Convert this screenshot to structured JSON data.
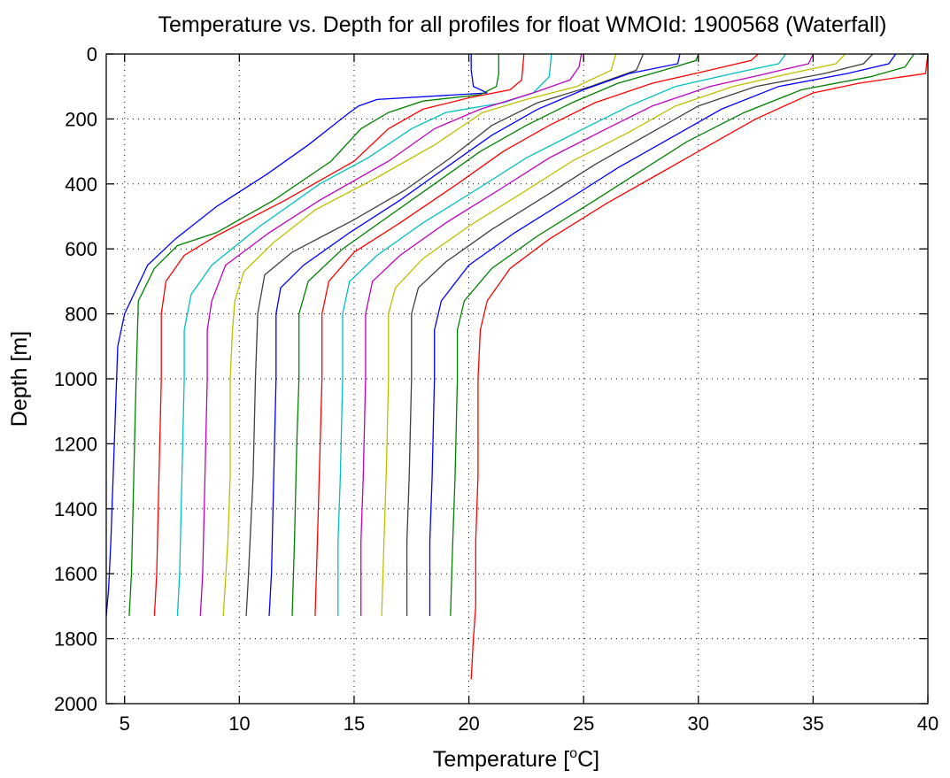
{
  "chart_data": {
    "type": "line",
    "title": "Temperature vs. Depth for all profiles for float WMOId: 1900568 (Waterfall)",
    "xlabel_prefix": "Temperature [",
    "xlabel_sup": "o",
    "xlabel_suffix": "C]",
    "ylabel": "Depth [m]",
    "xlim": [
      4.2,
      40
    ],
    "ylim": [
      2000,
      0
    ],
    "y_reversed": true,
    "x_ticks": [
      5,
      10,
      15,
      20,
      25,
      30,
      35,
      40
    ],
    "y_ticks": [
      0,
      200,
      400,
      600,
      800,
      1000,
      1200,
      1400,
      1600,
      1800,
      2000
    ],
    "grid": true,
    "legend": "none",
    "colors": [
      "#0000ff",
      "#008000",
      "#ff0000",
      "#00bfbf",
      "#bf00bf",
      "#bfbf00",
      "#404040"
    ],
    "series": [
      {
        "color": "#0000ff",
        "points": [
          [
            20.1,
            0
          ],
          [
            20.1,
            50
          ],
          [
            20.2,
            100
          ],
          [
            20.8,
            120
          ],
          [
            16.0,
            140
          ],
          [
            15.2,
            160
          ],
          [
            14.8,
            180
          ],
          [
            13.0,
            280
          ],
          [
            11.2,
            370
          ],
          [
            9.0,
            470
          ],
          [
            7.2,
            570
          ],
          [
            6.0,
            650
          ],
          [
            5.0,
            800
          ],
          [
            4.7,
            900
          ],
          [
            4.6,
            1100
          ],
          [
            4.5,
            1300
          ],
          [
            4.4,
            1500
          ],
          [
            4.3,
            1650
          ],
          [
            4.2,
            1730
          ]
        ]
      },
      {
        "color": "#008000",
        "points": [
          [
            21.3,
            0
          ],
          [
            21.3,
            60
          ],
          [
            21.2,
            100
          ],
          [
            20.5,
            125
          ],
          [
            18.0,
            145
          ],
          [
            16.5,
            180
          ],
          [
            15.3,
            230
          ],
          [
            14.0,
            330
          ],
          [
            11.5,
            450
          ],
          [
            9.0,
            550
          ],
          [
            7.3,
            590
          ],
          [
            6.3,
            660
          ],
          [
            5.6,
            760
          ],
          [
            5.5,
            1000
          ],
          [
            5.4,
            1300
          ],
          [
            5.3,
            1600
          ],
          [
            5.2,
            1730
          ]
        ]
      },
      {
        "color": "#ff0000",
        "points": [
          [
            22.4,
            0
          ],
          [
            22.3,
            80
          ],
          [
            21.8,
            110
          ],
          [
            20.0,
            135
          ],
          [
            18.0,
            170
          ],
          [
            16.5,
            230
          ],
          [
            15.0,
            330
          ],
          [
            12.0,
            450
          ],
          [
            9.0,
            560
          ],
          [
            7.6,
            620
          ],
          [
            6.8,
            700
          ],
          [
            6.6,
            800
          ],
          [
            6.6,
            1000
          ],
          [
            6.5,
            1300
          ],
          [
            6.4,
            1600
          ],
          [
            6.3,
            1730
          ]
        ]
      },
      {
        "color": "#00bfbf",
        "points": [
          [
            23.6,
            0
          ],
          [
            23.5,
            70
          ],
          [
            22.8,
            120
          ],
          [
            21.5,
            150
          ],
          [
            19.0,
            180
          ],
          [
            17.5,
            230
          ],
          [
            15.6,
            320
          ],
          [
            13.5,
            400
          ],
          [
            10.9,
            530
          ],
          [
            8.8,
            650
          ],
          [
            7.9,
            740
          ],
          [
            7.6,
            850
          ],
          [
            7.6,
            1000
          ],
          [
            7.5,
            1300
          ],
          [
            7.4,
            1600
          ],
          [
            7.3,
            1730
          ]
        ]
      },
      {
        "color": "#bf00bf",
        "points": [
          [
            24.9,
            0
          ],
          [
            24.8,
            40
          ],
          [
            24.4,
            80
          ],
          [
            22.8,
            120
          ],
          [
            20.5,
            170
          ],
          [
            18.5,
            230
          ],
          [
            16.5,
            330
          ],
          [
            13.5,
            450
          ],
          [
            11.3,
            550
          ],
          [
            9.4,
            650
          ],
          [
            8.8,
            760
          ],
          [
            8.6,
            850
          ],
          [
            8.6,
            1000
          ],
          [
            8.5,
            1300
          ],
          [
            8.4,
            1600
          ],
          [
            8.3,
            1730
          ]
        ]
      },
      {
        "color": "#bfbf00",
        "points": [
          [
            26.4,
            0
          ],
          [
            26.2,
            50
          ],
          [
            24.7,
            100
          ],
          [
            22.5,
            140
          ],
          [
            20.6,
            180
          ],
          [
            18.5,
            280
          ],
          [
            16.0,
            380
          ],
          [
            13.3,
            480
          ],
          [
            11.5,
            580
          ],
          [
            10.2,
            670
          ],
          [
            9.8,
            760
          ],
          [
            9.7,
            850
          ],
          [
            9.6,
            1000
          ],
          [
            9.6,
            1300
          ],
          [
            9.5,
            1500
          ],
          [
            9.3,
            1730
          ]
        ]
      },
      {
        "color": "#404040",
        "points": [
          [
            27.6,
            0
          ],
          [
            27.3,
            50
          ],
          [
            25.3,
            100
          ],
          [
            23.0,
            150
          ],
          [
            21.0,
            220
          ],
          [
            19.2,
            320
          ],
          [
            17.2,
            420
          ],
          [
            15.0,
            510
          ],
          [
            12.3,
            610
          ],
          [
            11.1,
            680
          ],
          [
            10.8,
            800
          ],
          [
            10.7,
            1000
          ],
          [
            10.6,
            1300
          ],
          [
            10.4,
            1600
          ],
          [
            10.3,
            1730
          ]
        ]
      },
      {
        "color": "#0000ff",
        "points": [
          [
            29.2,
            0
          ],
          [
            29.1,
            30
          ],
          [
            27.0,
            60
          ],
          [
            25.0,
            110
          ],
          [
            23.0,
            170
          ],
          [
            21.0,
            250
          ],
          [
            19.0,
            350
          ],
          [
            17.0,
            450
          ],
          [
            14.8,
            550
          ],
          [
            12.8,
            650
          ],
          [
            11.8,
            720
          ],
          [
            11.6,
            800
          ],
          [
            11.6,
            1000
          ],
          [
            11.5,
            1300
          ],
          [
            11.4,
            1600
          ],
          [
            11.3,
            1730
          ]
        ]
      },
      {
        "color": "#008000",
        "points": [
          [
            30.0,
            0
          ],
          [
            29.9,
            20
          ],
          [
            28.5,
            50
          ],
          [
            26.5,
            90
          ],
          [
            24.5,
            150
          ],
          [
            22.5,
            220
          ],
          [
            20.5,
            300
          ],
          [
            18.5,
            400
          ],
          [
            16.5,
            500
          ],
          [
            14.5,
            600
          ],
          [
            13.0,
            700
          ],
          [
            12.6,
            800
          ],
          [
            12.6,
            1000
          ],
          [
            12.5,
            1200
          ],
          [
            12.4,
            1500
          ],
          [
            12.3,
            1730
          ]
        ]
      },
      {
        "color": "#ff0000",
        "points": [
          [
            32.6,
            0
          ],
          [
            32.3,
            20
          ],
          [
            30.5,
            50
          ],
          [
            28.0,
            90
          ],
          [
            25.5,
            150
          ],
          [
            23.5,
            220
          ],
          [
            21.5,
            300
          ],
          [
            19.5,
            400
          ],
          [
            17.0,
            520
          ],
          [
            15.0,
            610
          ],
          [
            13.9,
            700
          ],
          [
            13.6,
            800
          ],
          [
            13.6,
            1000
          ],
          [
            13.5,
            1250
          ],
          [
            13.4,
            1500
          ],
          [
            13.3,
            1730
          ]
        ]
      },
      {
        "color": "#00bfbf",
        "points": [
          [
            33.8,
            0
          ],
          [
            33.5,
            30
          ],
          [
            31.5,
            60
          ],
          [
            29.0,
            100
          ],
          [
            27.0,
            160
          ],
          [
            25.0,
            230
          ],
          [
            22.5,
            320
          ],
          [
            20.5,
            410
          ],
          [
            18.0,
            520
          ],
          [
            16.0,
            620
          ],
          [
            14.8,
            700
          ],
          [
            14.5,
            800
          ],
          [
            14.5,
            1000
          ],
          [
            14.4,
            1300
          ],
          [
            14.3,
            1500
          ],
          [
            14.3,
            1730
          ]
        ]
      },
      {
        "color": "#bf00bf",
        "points": [
          [
            35.0,
            0
          ],
          [
            34.8,
            30
          ],
          [
            33.0,
            60
          ],
          [
            30.5,
            100
          ],
          [
            28.0,
            160
          ],
          [
            26.0,
            230
          ],
          [
            23.5,
            320
          ],
          [
            21.5,
            410
          ],
          [
            19.0,
            520
          ],
          [
            17.0,
            620
          ],
          [
            15.8,
            700
          ],
          [
            15.5,
            800
          ],
          [
            15.5,
            1000
          ],
          [
            15.4,
            1300
          ],
          [
            15.3,
            1500
          ],
          [
            15.3,
            1730
          ]
        ]
      },
      {
        "color": "#bfbf00",
        "points": [
          [
            36.4,
            0
          ],
          [
            36.0,
            30
          ],
          [
            34.0,
            60
          ],
          [
            31.5,
            100
          ],
          [
            29.0,
            160
          ],
          [
            27.0,
            240
          ],
          [
            24.5,
            330
          ],
          [
            22.5,
            420
          ],
          [
            20.0,
            530
          ],
          [
            18.0,
            630
          ],
          [
            16.8,
            720
          ],
          [
            16.5,
            800
          ],
          [
            16.5,
            1000
          ],
          [
            16.4,
            1300
          ],
          [
            16.3,
            1500
          ],
          [
            16.2,
            1730
          ]
        ]
      },
      {
        "color": "#404040",
        "points": [
          [
            37.6,
            0
          ],
          [
            37.2,
            30
          ],
          [
            35.5,
            60
          ],
          [
            32.5,
            100
          ],
          [
            30.0,
            160
          ],
          [
            28.0,
            240
          ],
          [
            25.5,
            340
          ],
          [
            23.5,
            430
          ],
          [
            21.0,
            540
          ],
          [
            19.0,
            640
          ],
          [
            17.8,
            720
          ],
          [
            17.5,
            800
          ],
          [
            17.5,
            1000
          ],
          [
            17.4,
            1300
          ],
          [
            17.3,
            1500
          ],
          [
            17.3,
            1730
          ]
        ]
      },
      {
        "color": "#0000ff",
        "points": [
          [
            38.6,
            0
          ],
          [
            38.3,
            30
          ],
          [
            36.5,
            60
          ],
          [
            33.5,
            100
          ],
          [
            31.0,
            170
          ],
          [
            29.0,
            250
          ],
          [
            26.5,
            350
          ],
          [
            24.5,
            440
          ],
          [
            22.0,
            550
          ],
          [
            20.0,
            650
          ],
          [
            18.8,
            760
          ],
          [
            18.5,
            850
          ],
          [
            18.5,
            1000
          ],
          [
            18.4,
            1300
          ],
          [
            18.3,
            1500
          ],
          [
            18.3,
            1730
          ]
        ]
      },
      {
        "color": "#008000",
        "points": [
          [
            39.4,
            0
          ],
          [
            39.0,
            40
          ],
          [
            37.5,
            70
          ],
          [
            34.5,
            110
          ],
          [
            32.0,
            180
          ],
          [
            29.5,
            270
          ],
          [
            27.5,
            360
          ],
          [
            25.5,
            450
          ],
          [
            23.0,
            560
          ],
          [
            21.0,
            660
          ],
          [
            19.8,
            760
          ],
          [
            19.5,
            850
          ],
          [
            19.5,
            1000
          ],
          [
            19.4,
            1300
          ],
          [
            19.3,
            1500
          ],
          [
            19.2,
            1730
          ]
        ]
      },
      {
        "color": "#ff0000",
        "points": [
          [
            40.0,
            0
          ],
          [
            39.9,
            60
          ],
          [
            37.0,
            90
          ],
          [
            35.0,
            120
          ],
          [
            32.5,
            200
          ],
          [
            30.0,
            300
          ],
          [
            28.0,
            380
          ],
          [
            26.0,
            460
          ],
          [
            23.5,
            570
          ],
          [
            21.8,
            660
          ],
          [
            20.8,
            760
          ],
          [
            20.5,
            850
          ],
          [
            20.4,
            1000
          ],
          [
            20.4,
            1300
          ],
          [
            20.3,
            1500
          ],
          [
            20.3,
            1700
          ],
          [
            20.2,
            1800
          ],
          [
            20.1,
            1925
          ]
        ]
      }
    ]
  }
}
